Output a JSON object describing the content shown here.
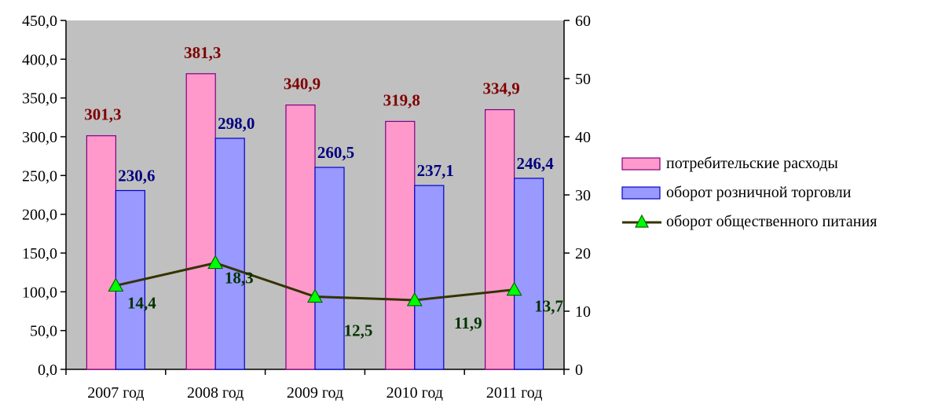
{
  "chart_data": {
    "type": "bar",
    "title": "",
    "xlabel": "",
    "ylabel": "",
    "categories": [
      "2007 год",
      "2008 год",
      "2009 год",
      "2010 год",
      "2011 год"
    ],
    "series": [
      {
        "name": "потребительские расходы",
        "type": "bar",
        "axis": "left",
        "values": [
          301.3,
          381.3,
          340.9,
          319.8,
          334.9
        ],
        "labels": [
          "301,3",
          "381,3",
          "340,9",
          "319,8",
          "334,9"
        ],
        "color": "#ff99cc",
        "label_color": "#800000"
      },
      {
        "name": "оборот розничной торговли",
        "type": "bar",
        "axis": "left",
        "values": [
          230.6,
          298.0,
          260.5,
          237.1,
          246.4
        ],
        "labels": [
          "230,6",
          "298,0",
          "260,5",
          "237,1",
          "246,4"
        ],
        "color": "#9999ff",
        "label_color": "#000080"
      },
      {
        "name": "оборот общественного питания",
        "type": "line",
        "axis": "right",
        "values": [
          14.4,
          18.3,
          12.5,
          11.9,
          13.7
        ],
        "labels": [
          "14,4",
          "18,3",
          "12,5",
          "11,9",
          "13,7"
        ],
        "color": "#333300",
        "marker_color": "#00ff00",
        "label_color": "#003300"
      }
    ],
    "y_left": {
      "min": 0,
      "max": 450,
      "ticks": [
        "0,0",
        "50,0",
        "100,0",
        "150,0",
        "200,0",
        "250,0",
        "300,0",
        "350,0",
        "400,0",
        "450,0"
      ]
    },
    "y_right": {
      "min": 0,
      "max": 60,
      "ticks": [
        "0",
        "10",
        "20",
        "30",
        "40",
        "50",
        "60"
      ]
    },
    "plot_background": "#c0c0c0",
    "grid": false,
    "legend_position": "right"
  }
}
